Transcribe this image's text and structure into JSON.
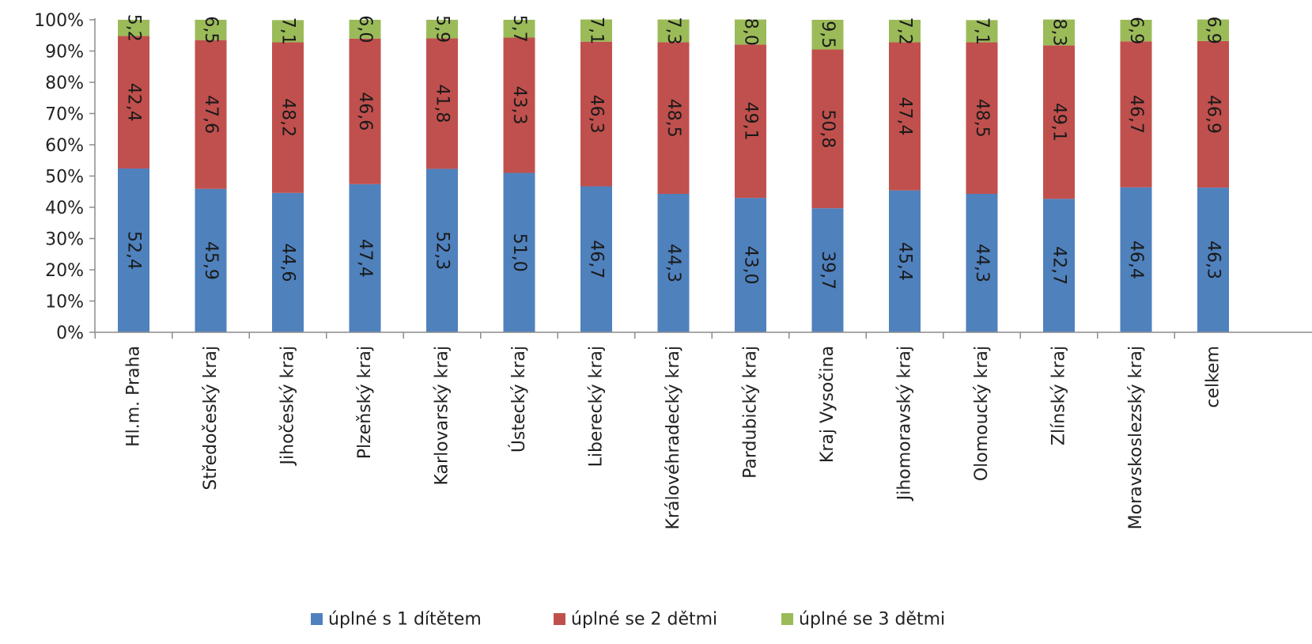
{
  "chart_data": {
    "type": "bar",
    "stacked": true,
    "orientation": "vertical",
    "categories": [
      "Hl.m. Praha",
      "Středočeský kraj",
      "Jihočeský kraj",
      "Plzeňský kraj",
      "Karlovarský kraj",
      "Ústecký kraj",
      "Liberecký kraj",
      "Královéhradecký kraj",
      "Pardubický kraj",
      "Kraj Vysočina",
      "Jihomoravský kraj",
      "Olomoucký kraj",
      "Zlínský kraj",
      "Moravskoslezský kraj",
      "celkem"
    ],
    "series": [
      {
        "name": "úplné s 1 dítětem",
        "color": "#4f81bd",
        "values": [
          52.4,
          45.9,
          44.6,
          47.4,
          52.3,
          51.0,
          46.7,
          44.3,
          43.0,
          39.7,
          45.4,
          44.3,
          42.7,
          46.4,
          46.3
        ],
        "labels": [
          "52,4",
          "45,9",
          "44,6",
          "47,4",
          "52,3",
          "51,0",
          "46,7",
          "44,3",
          "43,0",
          "39,7",
          "45,4",
          "44,3",
          "42,7",
          "46,4",
          "46,3"
        ]
      },
      {
        "name": "úplné se 2 dětmi",
        "color": "#c0504d",
        "values": [
          42.4,
          47.6,
          48.2,
          46.6,
          41.8,
          43.3,
          46.3,
          48.5,
          49.1,
          50.8,
          47.4,
          48.5,
          49.1,
          46.7,
          46.9
        ],
        "labels": [
          "42,4",
          "47,6",
          "48,2",
          "46,6",
          "41,8",
          "43,3",
          "46,3",
          "48,5",
          "49,1",
          "50,8",
          "47,4",
          "48,5",
          "49,1",
          "46,7",
          "46,9"
        ]
      },
      {
        "name": "úplné se 3 dětmi",
        "color": "#9bbb59",
        "values": [
          5.2,
          6.5,
          7.1,
          6.0,
          5.9,
          5.7,
          7.1,
          7.3,
          8.0,
          9.5,
          7.2,
          7.1,
          8.3,
          6.9,
          6.9
        ],
        "labels": [
          "5,2",
          "6,5",
          "7,1",
          "6,0",
          "5,9",
          "5,7",
          "7,1",
          "7,3",
          "8,0",
          "9,5",
          "7,2",
          "7,1",
          "8,3",
          "6,9",
          "6,9"
        ]
      }
    ],
    "y_ticks": [
      "0%",
      "10%",
      "20%",
      "30%",
      "40%",
      "50%",
      "60%",
      "70%",
      "80%",
      "90%",
      "100%"
    ],
    "ylim": [
      0,
      100
    ],
    "legend_position": "bottom",
    "grid": false
  }
}
